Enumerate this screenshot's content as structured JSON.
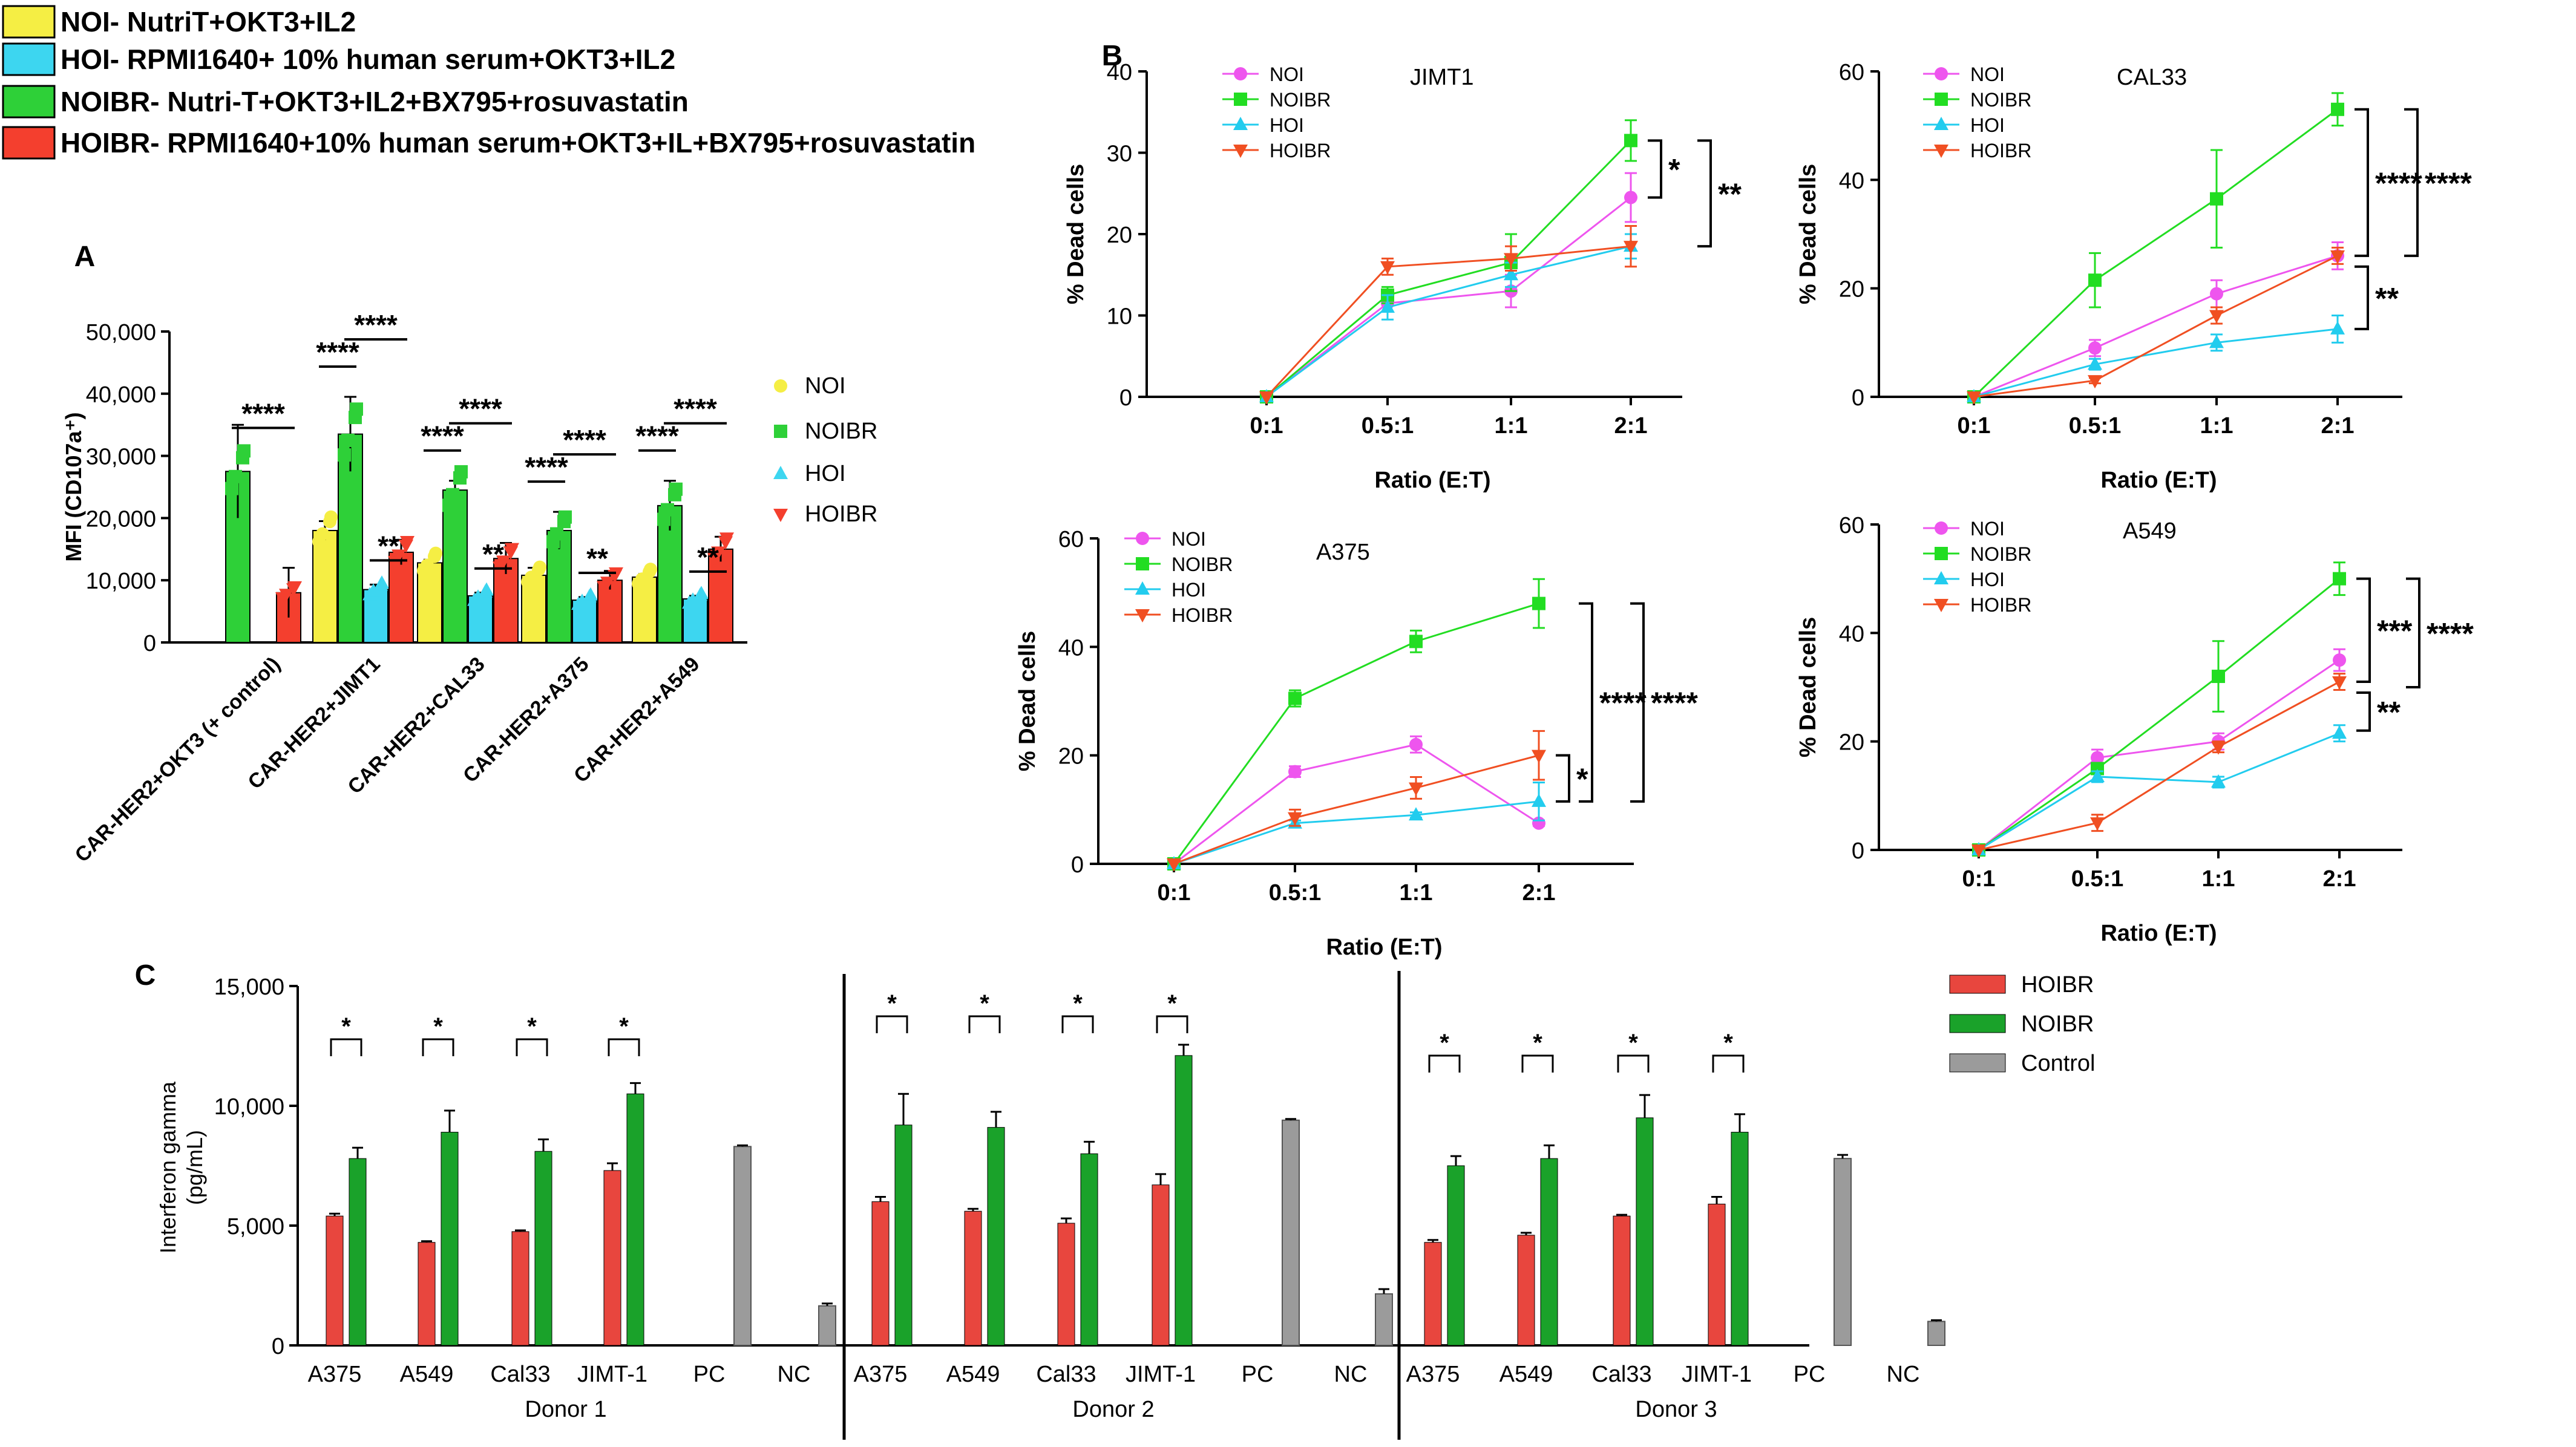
{
  "legend": {
    "items": [
      {
        "key": "NOI",
        "text": "NOI- NutriT+OKT3+IL2",
        "color": "#f5ee44"
      },
      {
        "key": "HOI",
        "text": "HOI- RPMI1640+ 10% human serum+OKT3+IL2",
        "color": "#3dd6f0"
      },
      {
        "key": "NOIBR",
        "text": "NOIBR- Nutri-T+OKT3+IL2+BX795+rosuvastatin",
        "color": "#2ed038"
      },
      {
        "key": "HOIBR",
        "text": "HOIBR- RPMI1640+10% human serum+OKT3+IL+BX795+rosuvastatin",
        "color": "#f43f2e"
      }
    ]
  },
  "panel_labels": {
    "a": "A",
    "b": "B",
    "c": "C"
  },
  "colors": {
    "NOI_bar": "#f5ee44",
    "NOIBR_bar": "#2ed038",
    "HOI_bar": "#3dd6f0",
    "HOIBR_bar": "#f43f2e",
    "NOI_line": "#ee55ee",
    "NOIBR_line": "#22dd22",
    "HOI_line": "#22ccee",
    "HOIBR_line": "#f04f22",
    "c_HOIBR": "#e8463e",
    "c_NOIBR": "#1aa22a",
    "c_Control": "#9b9b9b"
  },
  "chart_data": [
    {
      "id": "A",
      "type": "bar",
      "title": "",
      "ylabel": "MFI (CD107a⁺)",
      "xlabel": "",
      "ylim": [
        0,
        50000
      ],
      "yticks": [
        "0",
        "10,000",
        "20,000",
        "30,000",
        "40,000",
        "50,000"
      ],
      "categories": [
        "CAR-HER2+OKT3 (+ control)",
        "CAR-HER2+JIMT1",
        "CAR-HER2+CAL33",
        "CAR-HER2+A375",
        "CAR-HER2+A549"
      ],
      "legend": [
        "NOI",
        "NOIBR",
        "HOI",
        "HOIBR"
      ],
      "series": [
        {
          "name": "NOI",
          "values": [
            null,
            18000,
            12800,
            10800,
            10500
          ]
        },
        {
          "name": "NOIBR",
          "values": [
            27500,
            33500,
            24500,
            18000,
            22000
          ]
        },
        {
          "name": "HOI",
          "values": [
            null,
            8500,
            7500,
            6800,
            7000
          ]
        },
        {
          "name": "HOIBR",
          "values": [
            8000,
            14500,
            13500,
            10000,
            15000
          ]
        }
      ],
      "errors": [
        [
          null,
          1500,
          500,
          1200,
          500
        ],
        [
          7500,
          6000,
          1500,
          3000,
          4000
        ],
        [
          null,
          800,
          500,
          500,
          500
        ],
        [
          4000,
          2000,
          2500,
          1500,
          2000
        ]
      ],
      "significance": [
        {
          "cat": 0,
          "from": "NOIBR",
          "to": "HOIBR",
          "label": "****",
          "level": 0
        },
        {
          "cat": 1,
          "from": "NOI",
          "to": "NOIBR",
          "label": "****",
          "level": 0
        },
        {
          "cat": 1,
          "from": "NOIBR",
          "to": "HOIBR",
          "label": "****",
          "level": 1
        },
        {
          "cat": 1,
          "from": "HOI",
          "to": "HOIBR",
          "label": "**",
          "level": 2
        },
        {
          "cat": 2,
          "from": "NOI",
          "to": "NOIBR",
          "label": "****",
          "level": 0
        },
        {
          "cat": 2,
          "from": "NOIBR",
          "to": "HOIBR",
          "label": "****",
          "level": 1
        },
        {
          "cat": 2,
          "from": "HOI",
          "to": "HOIBR",
          "label": "**",
          "level": 2
        },
        {
          "cat": 3,
          "from": "NOI",
          "to": "NOIBR",
          "label": "****",
          "level": 0
        },
        {
          "cat": 3,
          "from": "NOIBR",
          "to": "HOIBR",
          "label": "****",
          "level": 1
        },
        {
          "cat": 3,
          "from": "HOI",
          "to": "HOIBR",
          "label": "**",
          "level": 2
        },
        {
          "cat": 4,
          "from": "NOI",
          "to": "NOIBR",
          "label": "****",
          "level": 0
        },
        {
          "cat": 4,
          "from": "NOIBR",
          "to": "HOIBR",
          "label": "****",
          "level": 1
        },
        {
          "cat": 4,
          "from": "HOI",
          "to": "HOIBR",
          "label": "**",
          "level": 2
        }
      ]
    },
    {
      "id": "B-JIMT1",
      "type": "line",
      "title": "JIMT1",
      "xlabel": "Ratio (E:T)",
      "ylabel": "% Dead cells",
      "ylim": [
        0,
        40
      ],
      "yticks": [
        0,
        10,
        20,
        30,
        40
      ],
      "categories": [
        "0:1",
        "0.5:1",
        "1:1",
        "2:1"
      ],
      "series": [
        {
          "name": "NOI",
          "values": [
            0,
            11.5,
            13,
            24.5
          ],
          "errors": [
            0,
            1,
            2,
            3
          ]
        },
        {
          "name": "NOIBR",
          "values": [
            0,
            12.5,
            16.5,
            31.5
          ],
          "errors": [
            0,
            1,
            3.5,
            2.5
          ]
        },
        {
          "name": "HOI",
          "values": [
            0,
            11,
            15,
            18.5
          ],
          "errors": [
            0,
            1.5,
            1.5,
            1.5
          ]
        },
        {
          "name": "HOIBR",
          "values": [
            0,
            16,
            17,
            18.5
          ],
          "errors": [
            0,
            1,
            1.5,
            2.5
          ]
        }
      ],
      "brackets": [
        {
          "from": 31.5,
          "to": 24.5,
          "label": "*",
          "level": 0
        },
        {
          "from": 31.5,
          "to": 18.5,
          "label": "**",
          "level": 1
        }
      ]
    },
    {
      "id": "B-CAL33",
      "type": "line",
      "title": "CAL33",
      "xlabel": "Ratio (E:T)",
      "ylabel": "% Dead cells",
      "ylim": [
        0,
        60
      ],
      "yticks": [
        0,
        20,
        40,
        60
      ],
      "categories": [
        "0:1",
        "0.5:1",
        "1:1",
        "2:1"
      ],
      "series": [
        {
          "name": "NOI",
          "values": [
            0,
            9,
            19,
            26
          ],
          "errors": [
            0,
            1.5,
            2.5,
            2.5
          ]
        },
        {
          "name": "NOIBR",
          "values": [
            0,
            21.5,
            36.5,
            53
          ],
          "errors": [
            0,
            5,
            9,
            3
          ]
        },
        {
          "name": "HOI",
          "values": [
            0,
            6,
            10,
            12.5
          ],
          "errors": [
            0,
            1,
            1.5,
            2.5
          ]
        },
        {
          "name": "HOIBR",
          "values": [
            0,
            3,
            15,
            26
          ],
          "errors": [
            0,
            0.5,
            1.5,
            1.5
          ]
        }
      ],
      "brackets": [
        {
          "from": 53,
          "to": 26,
          "label": "****",
          "level": 0
        },
        {
          "from": 53,
          "to": 26,
          "label": "****",
          "level": 1
        },
        {
          "from": 26,
          "to": 12.5,
          "label": "**",
          "level": 0
        }
      ]
    },
    {
      "id": "B-A375",
      "type": "line",
      "title": "A375",
      "xlabel": "Ratio (E:T)",
      "ylabel": "% Dead cells",
      "ylim": [
        0,
        60
      ],
      "yticks": [
        0,
        20,
        40,
        60
      ],
      "categories": [
        "0:1",
        "0.5:1",
        "1:1",
        "2:1"
      ],
      "series": [
        {
          "name": "NOI",
          "values": [
            0,
            17,
            22,
            7.5
          ],
          "errors": [
            0,
            1,
            1.5,
            0.5
          ]
        },
        {
          "name": "NOIBR",
          "values": [
            0,
            30.5,
            41,
            48
          ],
          "errors": [
            0,
            1.5,
            2,
            4.5
          ]
        },
        {
          "name": "HOI",
          "values": [
            0,
            7.5,
            9,
            11.5
          ],
          "errors": [
            0,
            0.5,
            0.5,
            3.5
          ]
        },
        {
          "name": "HOIBR",
          "values": [
            0,
            8.5,
            14,
            20
          ],
          "errors": [
            0,
            1.5,
            2,
            4.5
          ]
        }
      ],
      "brackets": [
        {
          "from": 20,
          "to": 11.5,
          "label": "*",
          "level": 0
        },
        {
          "from": 48,
          "to": 11.5,
          "label": "****",
          "level": 1
        },
        {
          "from": 48,
          "to": 11.5,
          "label": "****",
          "level": 2
        }
      ]
    },
    {
      "id": "B-A549",
      "type": "line",
      "title": "A549",
      "xlabel": "Ratio (E:T)",
      "ylabel": "% Dead cells",
      "ylim": [
        0,
        60
      ],
      "yticks": [
        0,
        20,
        40,
        60
      ],
      "categories": [
        "0:1",
        "0.5:1",
        "1:1",
        "2:1"
      ],
      "series": [
        {
          "name": "NOI",
          "values": [
            0,
            17,
            20,
            35
          ],
          "errors": [
            0,
            1.5,
            1.5,
            2
          ]
        },
        {
          "name": "NOIBR",
          "values": [
            0,
            15,
            32,
            50
          ],
          "errors": [
            0,
            1,
            6.5,
            3
          ]
        },
        {
          "name": "HOI",
          "values": [
            0,
            13.5,
            12.5,
            21.5
          ],
          "errors": [
            0,
            1,
            1,
            1.5
          ]
        },
        {
          "name": "HOIBR",
          "values": [
            0,
            5,
            19,
            31
          ],
          "errors": [
            0,
            1.5,
            1,
            1.5
          ]
        }
      ],
      "brackets": [
        {
          "from": 50,
          "to": 31,
          "label": "***",
          "level": 0
        },
        {
          "from": 50,
          "to": 30,
          "label": "****",
          "level": 1
        },
        {
          "from": 31,
          "to": 22,
          "label": "**",
          "level": 0
        }
      ]
    },
    {
      "id": "C",
      "type": "bar",
      "title": "",
      "ylabel": "Interferon gamma\n(pg/mL)",
      "xlabel": "",
      "ylim": [
        0,
        15000
      ],
      "yticks": [
        "0",
        "5,000",
        "10,000",
        "15,000"
      ],
      "legend": [
        "HOIBR",
        "NOIBR",
        "Control"
      ],
      "donors": [
        {
          "name": "Donor 1",
          "groups": [
            {
              "label": "A375",
              "HOIBR": 5400,
              "NOIBR": 7800,
              "err_h": 100,
              "err_n": 450,
              "sig": "*"
            },
            {
              "label": "A549",
              "HOIBR": 4300,
              "NOIBR": 8900,
              "err_h": 50,
              "err_n": 900,
              "sig": "*"
            },
            {
              "label": "Cal33",
              "HOIBR": 4750,
              "NOIBR": 8100,
              "err_h": 50,
              "err_n": 500,
              "sig": "*"
            },
            {
              "label": "JIMT-1",
              "HOIBR": 7300,
              "NOIBR": 10500,
              "err_h": 300,
              "err_n": 450,
              "sig": "*"
            },
            {
              "label": "PC",
              "Control": 8300,
              "err_c": 50
            },
            {
              "label": "NC",
              "Control": 1650,
              "err_c": 100
            }
          ]
        },
        {
          "name": "Donor 2",
          "groups": [
            {
              "label": "A375",
              "HOIBR": 6000,
              "NOIBR": 9200,
              "err_h": 200,
              "err_n": 1300,
              "sig": "*"
            },
            {
              "label": "A549",
              "HOIBR": 5600,
              "NOIBR": 9100,
              "err_h": 100,
              "err_n": 650,
              "sig": "*"
            },
            {
              "label": "Cal33",
              "HOIBR": 5100,
              "NOIBR": 8000,
              "err_h": 200,
              "err_n": 500,
              "sig": "*"
            },
            {
              "label": "JIMT-1",
              "HOIBR": 6700,
              "NOIBR": 12100,
              "err_h": 450,
              "err_n": 450,
              "sig": "*"
            },
            {
              "label": "PC",
              "Control": 9400,
              "err_c": 50
            },
            {
              "label": "NC",
              "Control": 2150,
              "err_c": 200
            }
          ]
        },
        {
          "name": "Donor 3",
          "groups": [
            {
              "label": "A375",
              "HOIBR": 4300,
              "NOIBR": 7500,
              "err_h": 100,
              "err_n": 400,
              "sig": "*"
            },
            {
              "label": "A549",
              "HOIBR": 4600,
              "NOIBR": 7800,
              "err_h": 100,
              "err_n": 550,
              "sig": "*"
            },
            {
              "label": "Cal33",
              "HOIBR": 5400,
              "NOIBR": 9500,
              "err_h": 50,
              "err_n": 950,
              "sig": "*"
            },
            {
              "label": "JIMT-1",
              "HOIBR": 5900,
              "NOIBR": 8900,
              "err_h": 300,
              "err_n": 750,
              "sig": "*"
            },
            {
              "label": "PC",
              "Control": 7800,
              "err_c": 150
            },
            {
              "label": "NC",
              "Control": 1000,
              "err_c": 50
            }
          ]
        }
      ]
    }
  ]
}
